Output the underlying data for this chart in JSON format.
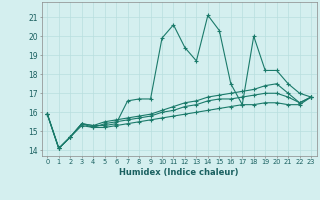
{
  "xlabel": "Humidex (Indice chaleur)",
  "bg_color": "#d4efef",
  "grid_color": "#b8dede",
  "line_color": "#1a7a6a",
  "xlim": [
    -0.5,
    23.5
  ],
  "ylim": [
    13.7,
    21.8
  ],
  "yticks": [
    14,
    15,
    16,
    17,
    18,
    19,
    20,
    21
  ],
  "xticks": [
    0,
    1,
    2,
    3,
    4,
    5,
    6,
    7,
    8,
    9,
    10,
    11,
    12,
    13,
    14,
    15,
    16,
    17,
    18,
    19,
    20,
    21,
    22,
    23
  ],
  "series": [
    [
      15.9,
      14.1,
      14.7,
      15.4,
      15.3,
      15.3,
      15.4,
      16.6,
      16.7,
      16.7,
      19.9,
      20.6,
      19.4,
      18.7,
      21.1,
      20.3,
      17.5,
      16.4,
      20.0,
      18.2,
      18.2,
      17.5,
      17.0,
      16.8
    ],
    [
      15.9,
      14.1,
      14.7,
      15.4,
      15.3,
      15.5,
      15.6,
      15.7,
      15.8,
      15.9,
      16.1,
      16.3,
      16.5,
      16.6,
      16.8,
      16.9,
      17.0,
      17.1,
      17.2,
      17.4,
      17.5,
      17.0,
      16.5,
      16.8
    ],
    [
      15.9,
      14.1,
      14.7,
      15.4,
      15.2,
      15.4,
      15.5,
      15.6,
      15.7,
      15.8,
      16.0,
      16.1,
      16.3,
      16.4,
      16.6,
      16.7,
      16.7,
      16.8,
      16.9,
      17.0,
      17.0,
      16.8,
      16.5,
      16.8
    ],
    [
      15.9,
      14.1,
      14.7,
      15.3,
      15.2,
      15.2,
      15.3,
      15.4,
      15.5,
      15.6,
      15.7,
      15.8,
      15.9,
      16.0,
      16.1,
      16.2,
      16.3,
      16.4,
      16.4,
      16.5,
      16.5,
      16.4,
      16.4,
      16.8
    ]
  ]
}
